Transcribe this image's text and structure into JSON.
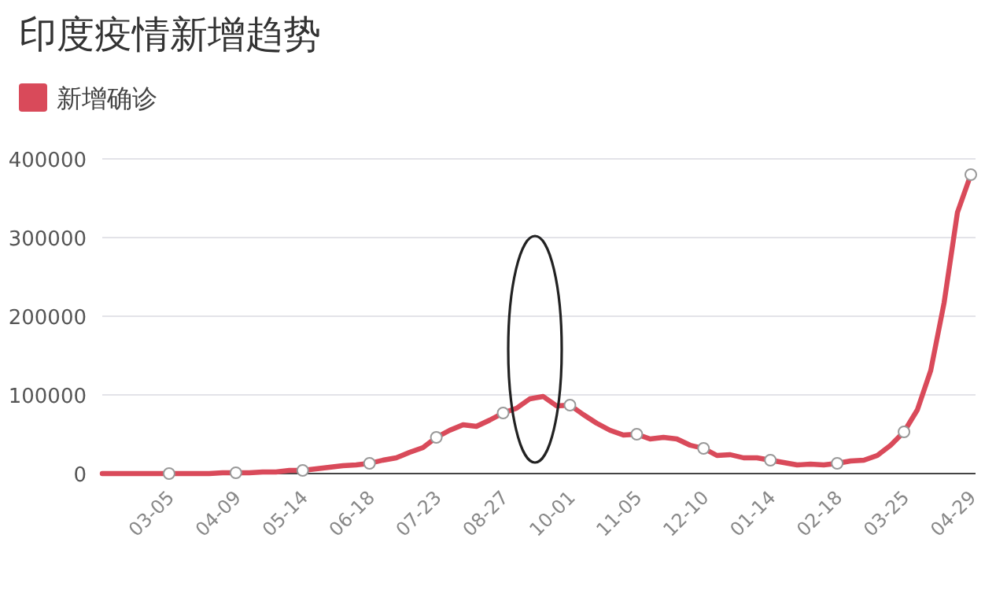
{
  "chart_data": {
    "type": "line",
    "title": "印度疫情新增趋势",
    "legend": "top left",
    "grid": "y",
    "line_style": "solid",
    "categories": [
      null,
      null,
      null,
      null,
      null,
      "03-05",
      null,
      null,
      null,
      null,
      "04-09",
      null,
      null,
      null,
      null,
      "05-14",
      null,
      null,
      null,
      null,
      "06-18",
      null,
      null,
      null,
      null,
      "07-23",
      null,
      null,
      null,
      null,
      "08-27",
      null,
      null,
      null,
      null,
      "10-01",
      null,
      null,
      null,
      null,
      "11-05",
      null,
      null,
      null,
      null,
      "12-10",
      null,
      null,
      null,
      null,
      "01-14",
      null,
      null,
      null,
      null,
      "02-18",
      null,
      null,
      null,
      null,
      "03-25",
      null,
      null,
      null,
      null,
      "04-29"
    ],
    "series": [
      {
        "name": "新增确诊",
        "color": "#d94a5a",
        "values": [
          0,
          0,
          0,
          0,
          0,
          0,
          0,
          0,
          0,
          1000,
          1000,
          1000,
          2000,
          2000,
          4000,
          4000,
          6000,
          8000,
          10000,
          11000,
          13000,
          17000,
          20000,
          27000,
          33000,
          46000,
          55000,
          62000,
          60000,
          68000,
          77000,
          83000,
          95000,
          98000,
          86000,
          87000,
          75000,
          64000,
          55000,
          49000,
          50000,
          44000,
          46000,
          44000,
          36000,
          32000,
          23000,
          24000,
          20000,
          20000,
          17000,
          14000,
          11000,
          12000,
          11000,
          13000,
          16000,
          17000,
          23000,
          36000,
          53000,
          81000,
          131000,
          217000,
          332000,
          380000
        ]
      }
    ],
    "ylim": [
      0,
      400000
    ],
    "yticks": [
      0,
      100000,
      200000,
      300000,
      400000
    ]
  }
}
